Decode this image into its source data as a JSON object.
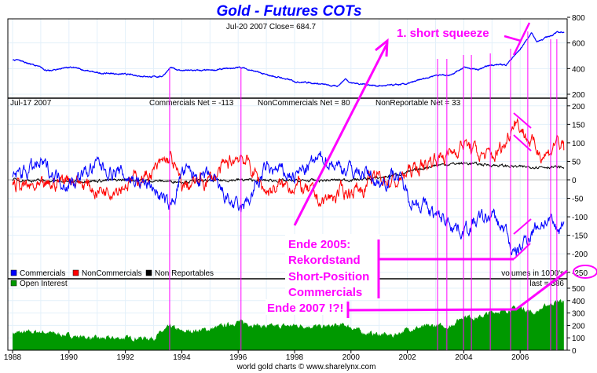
{
  "chart_data": {
    "type": "line",
    "title": "Gold - Futures COTs",
    "footer": "world gold charts © www.sharelynx.com",
    "x_ticks": [
      "1988",
      "1990",
      "1992",
      "1994",
      "1996",
      "1998",
      "2000",
      "2002",
      "2004",
      "2006"
    ],
    "xlim": [
      1988,
      2007.6
    ],
    "grid": true,
    "colors": {
      "title": "#0000ff",
      "gold": "#0000ff",
      "commercials": "#0000ff",
      "noncommercials": "#ff0000",
      "nonreportables": "#000000",
      "open_interest": "#009900",
      "annotation": "#ff00ff"
    },
    "panels": {
      "price": {
        "header": "Jul-20  2007    Close= 684.7",
        "ylim": [
          200,
          800
        ],
        "y_ticks": [
          "800",
          "600",
          "400",
          "200"
        ],
        "series": [
          {
            "name": "Gold",
            "points": [
              [
                1988.0,
                470
              ],
              [
                1988.3,
                460
              ],
              [
                1988.8,
                425
              ],
              [
                1989.3,
                380
              ],
              [
                1989.9,
                410
              ],
              [
                1990.2,
                405
              ],
              [
                1990.6,
                385
              ],
              [
                1991.0,
                365
              ],
              [
                1991.5,
                362
              ],
              [
                1992.0,
                355
              ],
              [
                1992.5,
                345
              ],
              [
                1993.0,
                335
              ],
              [
                1993.3,
                340
              ],
              [
                1993.6,
                405
              ],
              [
                1994.0,
                385
              ],
              [
                1995.0,
                385
              ],
              [
                1996.1,
                410
              ],
              [
                1996.5,
                385
              ],
              [
                1997.0,
                350
              ],
              [
                1997.5,
                330
              ],
              [
                1998.0,
                300
              ],
              [
                1998.6,
                290
              ],
              [
                1999.5,
                260
              ],
              [
                1999.8,
                320
              ],
              [
                2000.0,
                290
              ],
              [
                2001.0,
                265
              ],
              [
                2001.5,
                270
              ],
              [
                2002.0,
                280
              ],
              [
                2002.5,
                315
              ],
              [
                2003.0,
                350
              ],
              [
                2003.5,
                350
              ],
              [
                2004.0,
                410
              ],
              [
                2004.5,
                390
              ],
              [
                2005.0,
                430
              ],
              [
                2005.5,
                430
              ],
              [
                2006.0,
                550
              ],
              [
                2006.4,
                680
              ],
              [
                2006.6,
                610
              ],
              [
                2007.0,
                650
              ],
              [
                2007.3,
                680
              ],
              [
                2007.55,
                685
              ]
            ]
          }
        ]
      },
      "cot": {
        "date": "Jul-17  2007",
        "labels": [
          "Commercials Net = -113",
          "NonCommercials Net = 80",
          "NonReportable Net = 33"
        ],
        "ylim": [
          -250,
          200
        ],
        "y_ticks": [
          "200",
          "150",
          "100",
          "50",
          "0",
          "-50",
          "-100",
          "-150",
          "-200",
          "-250"
        ],
        "legend": [
          "Commercials",
          "NonCommercials",
          "Non Reportables"
        ],
        "series": [
          {
            "name": "Commercials",
            "points": [
              [
                1988.0,
                10
              ],
              [
                1989.0,
                40
              ],
              [
                1990.0,
                -10
              ],
              [
                1991.0,
                40
              ],
              [
                1992.0,
                10
              ],
              [
                1993.0,
                -20
              ],
              [
                1993.6,
                -80
              ],
              [
                1994.0,
                20
              ],
              [
                1995.0,
                0
              ],
              [
                1996.1,
                -90
              ],
              [
                1997.0,
                30
              ],
              [
                1998.0,
                10
              ],
              [
                1999.0,
                60
              ],
              [
                1999.8,
                30
              ],
              [
                2000.5,
                20
              ],
              [
                2001.0,
                -10
              ],
              [
                2001.6,
                20
              ],
              [
                2002.0,
                -40
              ],
              [
                2002.6,
                -70
              ],
              [
                2003.0,
                -100
              ],
              [
                2003.5,
                -110
              ],
              [
                2004.0,
                -140
              ],
              [
                2004.5,
                -110
              ],
              [
                2005.0,
                -100
              ],
              [
                2005.5,
                -140
              ],
              [
                2005.8,
                -210
              ],
              [
                2006.3,
                -150
              ],
              [
                2006.6,
                -120
              ],
              [
                2007.0,
                -110
              ],
              [
                2007.3,
                -140
              ],
              [
                2007.55,
                -113
              ]
            ]
          },
          {
            "name": "NonCommercials",
            "points": [
              [
                1988.0,
                -10
              ],
              [
                1989.0,
                -30
              ],
              [
                1990.0,
                10
              ],
              [
                1991.0,
                -30
              ],
              [
                1992.0,
                -10
              ],
              [
                1993.0,
                20
              ],
              [
                1993.6,
                60
              ],
              [
                1994.0,
                -20
              ],
              [
                1995.0,
                0
              ],
              [
                1996.1,
                70
              ],
              [
                1997.0,
                -30
              ],
              [
                1998.0,
                -10
              ],
              [
                1999.0,
                -60
              ],
              [
                1999.8,
                -30
              ],
              [
                2000.5,
                -20
              ],
              [
                2001.0,
                10
              ],
              [
                2001.6,
                -10
              ],
              [
                2002.0,
                20
              ],
              [
                2002.6,
                40
              ],
              [
                2003.0,
                60
              ],
              [
                2003.5,
                70
              ],
              [
                2004.0,
                100
              ],
              [
                2004.5,
                70
              ],
              [
                2005.0,
                60
              ],
              [
                2005.5,
                100
              ],
              [
                2005.8,
                170
              ],
              [
                2006.3,
                110
              ],
              [
                2006.6,
                80
              ],
              [
                2007.0,
                70
              ],
              [
                2007.3,
                110
              ],
              [
                2007.55,
                80
              ]
            ]
          },
          {
            "name": "Non Reportables",
            "points": [
              [
                1988.0,
                0
              ],
              [
                1990.0,
                -5
              ],
              [
                1992.0,
                0
              ],
              [
                1994.0,
                -5
              ],
              [
                1996.0,
                0
              ],
              [
                1998.0,
                -3
              ],
              [
                2000.0,
                0
              ],
              [
                2001.0,
                5
              ],
              [
                2002.0,
                20
              ],
              [
                2003.0,
                40
              ],
              [
                2004.0,
                45
              ],
              [
                2005.0,
                40
              ],
              [
                2006.0,
                35
              ],
              [
                2007.0,
                35
              ],
              [
                2007.55,
                33
              ]
            ]
          }
        ]
      },
      "open_interest": {
        "legend": "Open Interest",
        "units": "volumes in 1000's",
        "last": "last = 386",
        "ylim": [
          0,
          550
        ],
        "y_ticks": [
          "500",
          "400",
          "300",
          "200",
          "100",
          "0"
        ],
        "series": [
          {
            "name": "Open Interest",
            "points": [
              [
                1988.0,
                140
              ],
              [
                1989.0,
                150
              ],
              [
                1990.0,
                120
              ],
              [
                1991.0,
                95
              ],
              [
                1992.0,
                100
              ],
              [
                1993.0,
                100
              ],
              [
                1993.6,
                195
              ],
              [
                1994.0,
                150
              ],
              [
                1995.0,
                170
              ],
              [
                1996.0,
                230
              ],
              [
                1997.0,
                190
              ],
              [
                1998.0,
                200
              ],
              [
                1999.0,
                190
              ],
              [
                1999.8,
                205
              ],
              [
                2000.5,
                140
              ],
              [
                2001.5,
                120
              ],
              [
                2002.0,
                170
              ],
              [
                2003.0,
                200
              ],
              [
                2003.5,
                190
              ],
              [
                2004.0,
                280
              ],
              [
                2004.5,
                260
              ],
              [
                2005.0,
                310
              ],
              [
                2005.5,
                320
              ],
              [
                2006.0,
                350
              ],
              [
                2006.5,
                300
              ],
              [
                2007.0,
                370
              ],
              [
                2007.4,
                400
              ],
              [
                2007.55,
                386
              ]
            ]
          }
        ]
      }
    },
    "annotations": {
      "short_squeeze": "1. short squeeze",
      "ende2005": [
        "Ende 2005:",
        "Rekordstand",
        "Short-Position",
        "Commercials"
      ],
      "ende2007": "Ende 2007 !?!",
      "marker_dates": [
        1993.57,
        1996.1,
        2003.07,
        2003.4,
        2003.99,
        2004.27,
        2004.94,
        2005.66,
        2006.27,
        2007.08,
        2007.3
      ]
    }
  }
}
